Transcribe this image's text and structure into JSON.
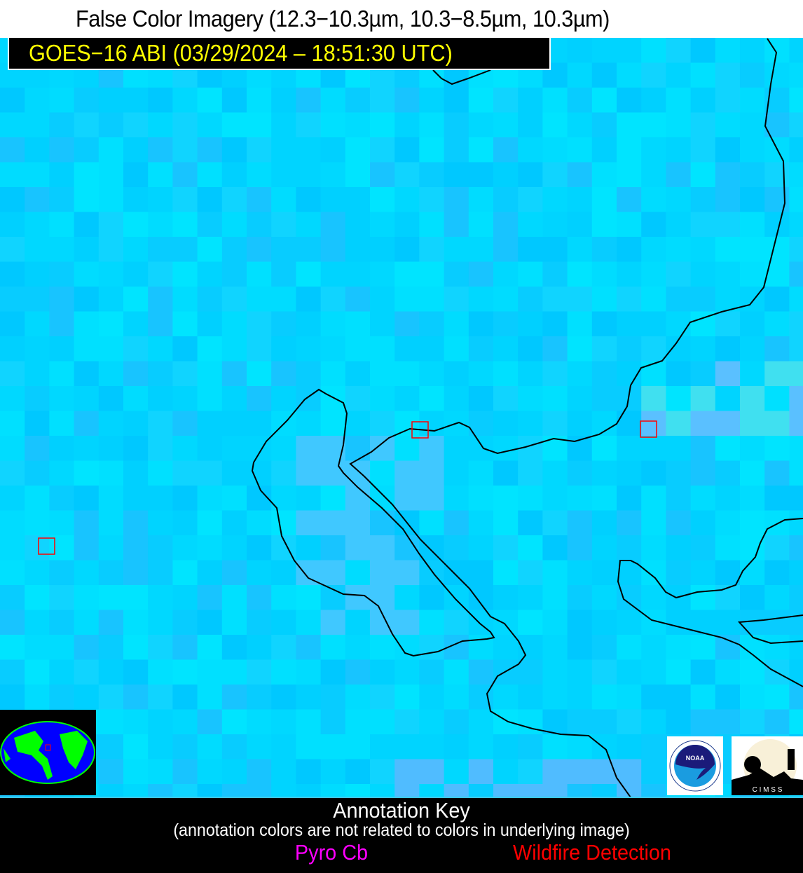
{
  "header": {
    "title": "False Color Imagery (12.3−10.3µm, 10.3−8.5µm, 10.3µm)",
    "subtitle": "GOES−16 ABI (03/29/2024 – 18:51:30 UTC)"
  },
  "map": {
    "base_color": "#00d8ff",
    "coastline_color": "#000000",
    "wildfire_box_color": "#ff0000",
    "wildfire_detections": 3
  },
  "logos": {
    "noaa": "NOAA",
    "cimss": "C I M S S"
  },
  "annotation_key": {
    "title": "Annotation Key",
    "note": "(annotation colors are not related to colors in underlying image)",
    "pyro_cb": "Pyro Cb",
    "pyro_cb_color": "#ff00ff",
    "wildfire": "Wildfire Detection",
    "wildfire_color": "#ff0000"
  }
}
